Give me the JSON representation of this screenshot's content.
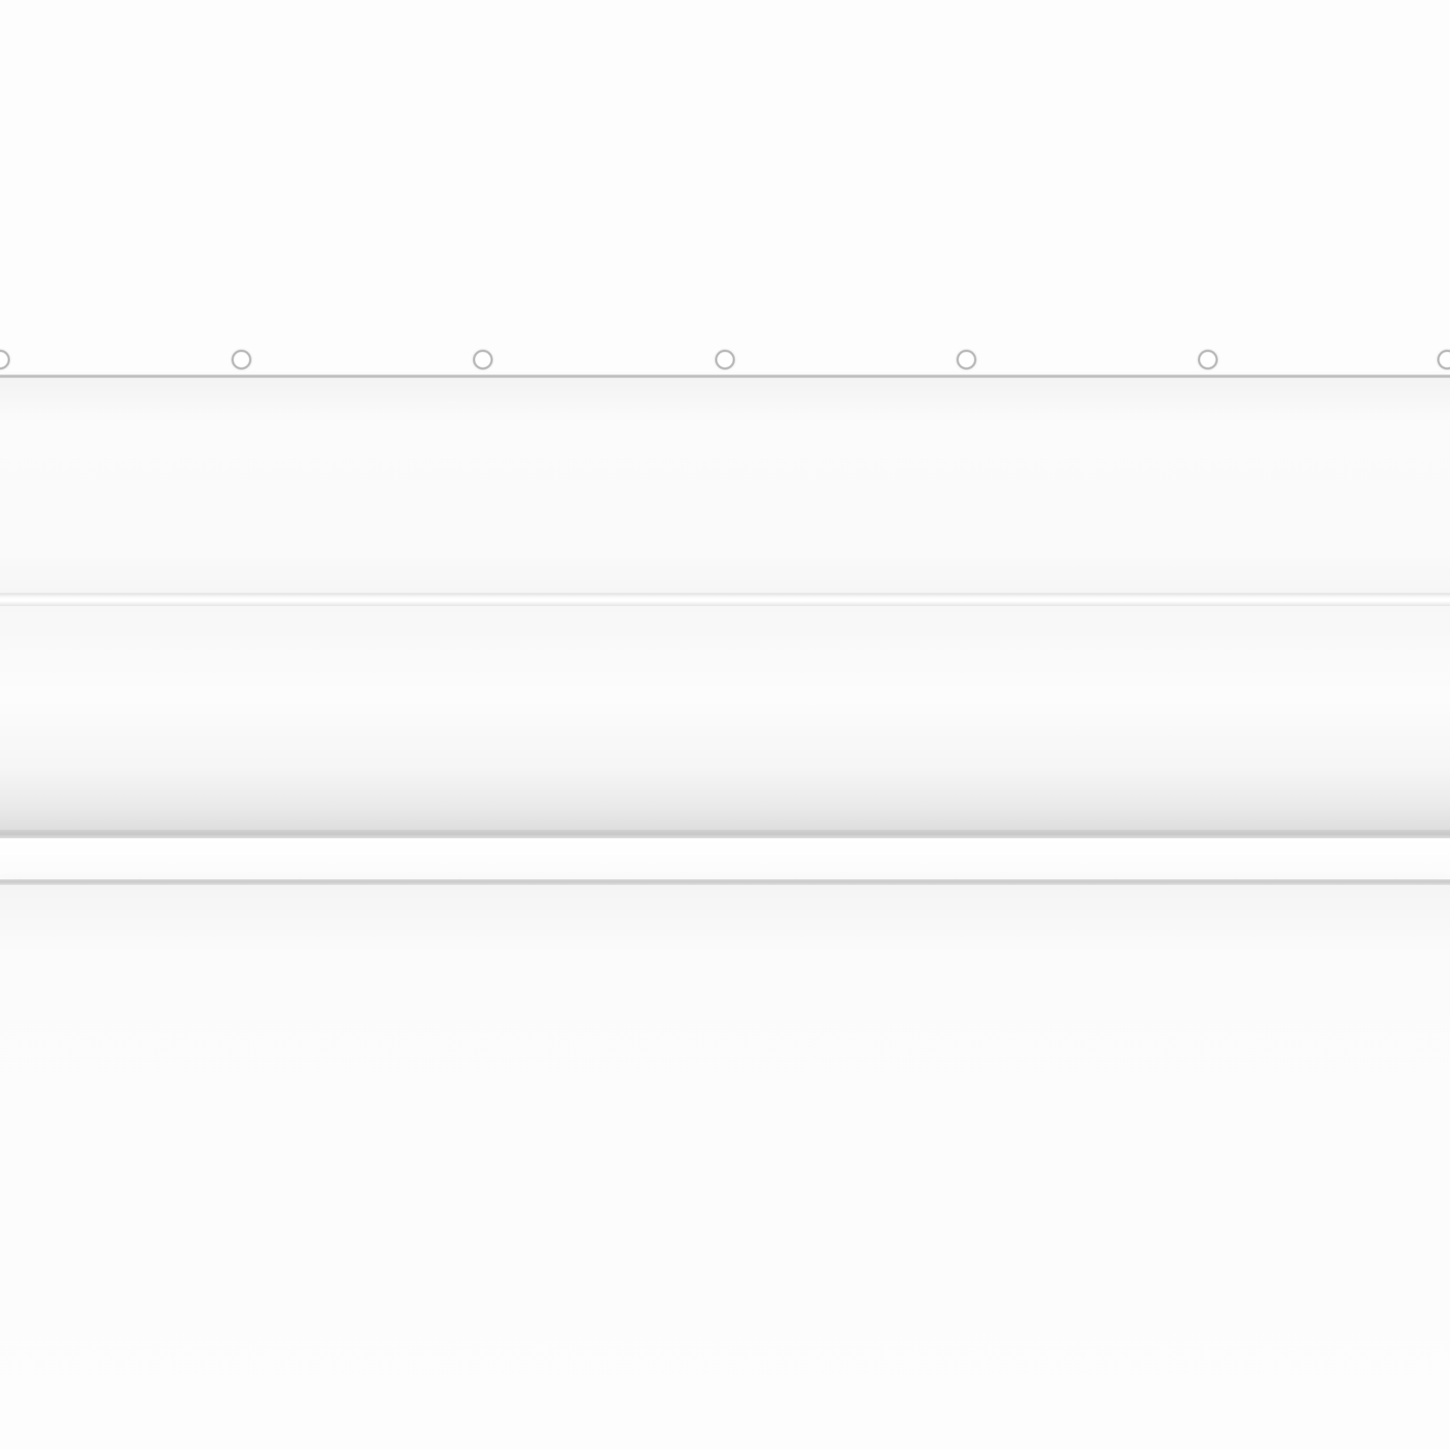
{
  "scene": {
    "kind": "blank white panel with rivets and rails",
    "rivet_count": 7,
    "colors": {
      "background": "#fdfdfd",
      "rail": "#c4c4c4",
      "rivet_outline": "#b9b9b9",
      "rivet_fill": "#ffffff"
    }
  }
}
